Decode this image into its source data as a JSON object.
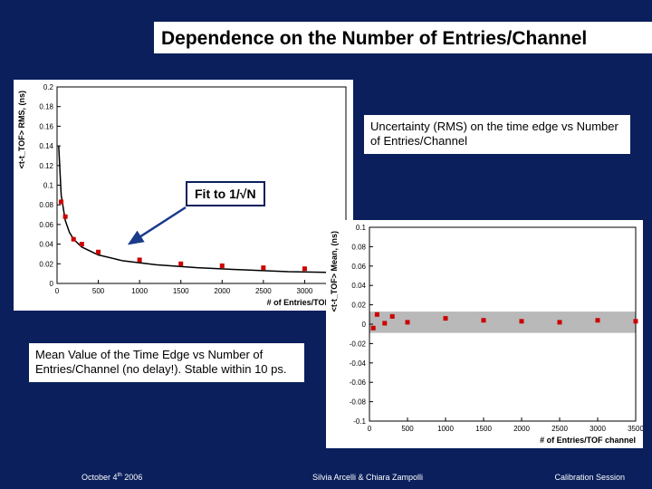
{
  "title": "Dependence on the Number of Entries/Channel",
  "box_uncertainty": "Uncertainty (RMS) on the time edge vs Number of Entries/Channel",
  "box_mean": "Mean Value of the Time Edge vs Number of Entries/Channel (no delay!). Stable within 10 ps.",
  "fit_label": "Fit to 1/√N",
  "footer": {
    "date": "October 4th 2006",
    "authors": "Silvia Arcelli & Chiara Zampolli",
    "session": "Calibration Session"
  },
  "colors": {
    "slide_bg": "#0a1f5c",
    "panel_bg": "#ffffff",
    "marker": "#cc0000",
    "fit_line": "#000000",
    "axis": "#000000",
    "band_fill": "#808080"
  },
  "plot1": {
    "type": "scatter+fit",
    "xlim": [
      0,
      3500
    ],
    "ylim": [
      0,
      0.2
    ],
    "xtick_step": 500,
    "yticks": [
      0,
      0.02,
      0.04,
      0.06,
      0.08,
      0.1,
      0.12,
      0.14,
      0.16,
      0.18,
      0.2
    ],
    "xlabel": "# of Entries/TOF cha",
    "ylabel": "<t-t_TOF> RMS, (ns)",
    "marker_style": "square",
    "marker_size": 5,
    "marker_color": "#cc0000",
    "fit_color": "#000000",
    "fit_width": 1.5,
    "points_x": [
      50,
      100,
      200,
      300,
      500,
      1000,
      1500,
      2000,
      2500,
      3000,
      3500
    ],
    "points_y": [
      0.083,
      0.068,
      0.045,
      0.04,
      0.032,
      0.024,
      0.02,
      0.018,
      0.016,
      0.015,
      0.014
    ],
    "fit_x": [
      20,
      50,
      100,
      150,
      200,
      300,
      500,
      800,
      1200,
      1700,
      2200,
      2800,
      3500
    ],
    "fit_y": [
      0.14,
      0.09,
      0.064,
      0.052,
      0.045,
      0.037,
      0.029,
      0.023,
      0.019,
      0.016,
      0.014,
      0.012,
      0.011
    ],
    "label_fontsize": 9,
    "tick_fontsize": 8
  },
  "plot2": {
    "type": "scatter+band",
    "xlim": [
      0,
      3500
    ],
    "ylim": [
      -0.1,
      0.1
    ],
    "xtick_step": 500,
    "yticks": [
      -0.1,
      -0.08,
      -0.06,
      -0.04,
      -0.02,
      0,
      0.02,
      0.04,
      0.06,
      0.08,
      0.1
    ],
    "xlabel": "# of Entries/TOF channel",
    "ylabel": "<t-t_TOF> Mean, (ns)",
    "marker_style": "square",
    "marker_size": 5,
    "marker_color": "#cc0000",
    "band_color": "#808080",
    "band_x": [
      0,
      3500
    ],
    "band_y_low": -0.009,
    "band_y_high": 0.013,
    "points_x": [
      50,
      100,
      200,
      300,
      500,
      1000,
      1500,
      2000,
      2500,
      3000,
      3500
    ],
    "points_y": [
      -0.004,
      0.01,
      0.001,
      0.008,
      0.002,
      0.006,
      0.004,
      0.003,
      0.002,
      0.004,
      0.003
    ],
    "label_fontsize": 9,
    "tick_fontsize": 8
  }
}
